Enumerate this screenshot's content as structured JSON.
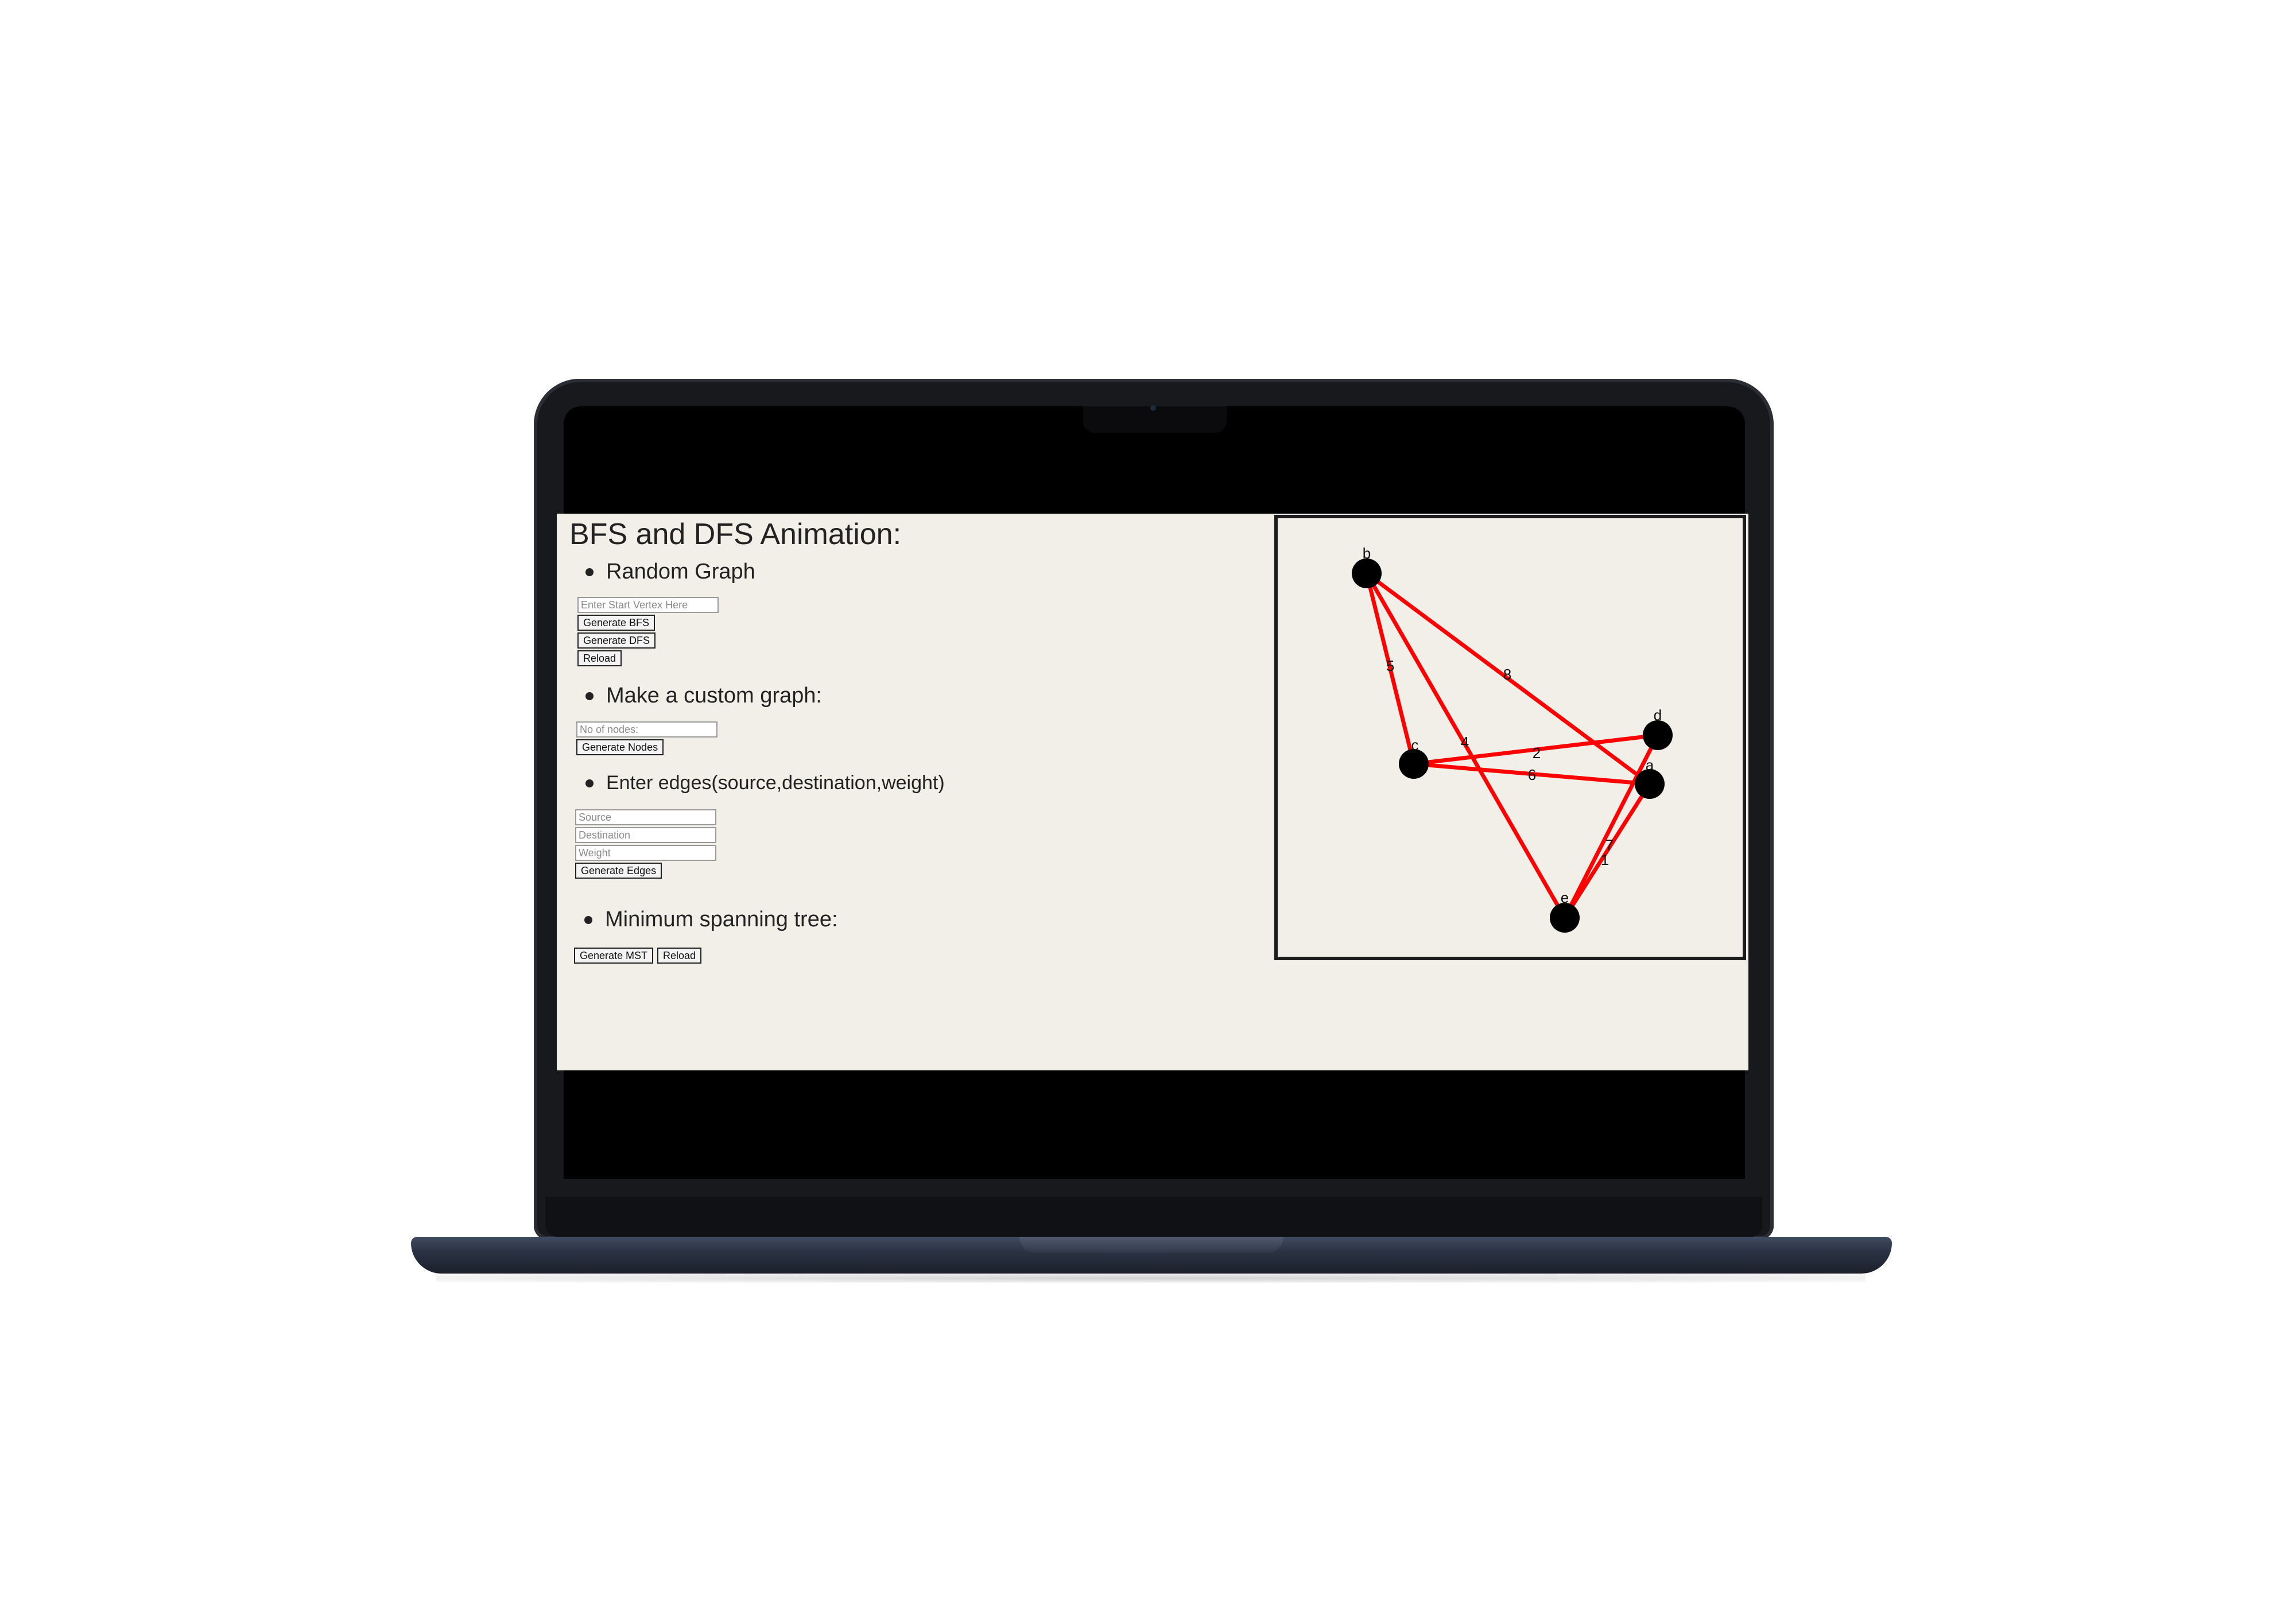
{
  "page": {
    "title": "BFS and DFS Animation:"
  },
  "random_graph": {
    "heading": "Random Graph",
    "start_vertex_placeholder": "Enter Start Vertex Here",
    "bfs_button": "Generate BFS",
    "dfs_button": "Generate DFS",
    "reload_button": "Reload"
  },
  "custom_graph": {
    "heading": "Make a custom graph:",
    "nodes_placeholder": "No of nodes:",
    "generate_nodes_button": "Generate Nodes"
  },
  "edges": {
    "heading": "Enter edges(source,destination,weight)",
    "source_placeholder": "Source",
    "destination_placeholder": "Destination",
    "weight_placeholder": "Weight",
    "generate_edges_button": "Generate Edges"
  },
  "mst": {
    "heading": "Minimum spanning tree:",
    "generate_mst_button": "Generate MST",
    "reload_button": "Reload"
  },
  "graph": {
    "node_color": "#000000",
    "edge_color": "#ff0000",
    "nodes": [
      {
        "id": "b",
        "label": "b"
      },
      {
        "id": "c",
        "label": "c"
      },
      {
        "id": "d",
        "label": "d"
      },
      {
        "id": "a",
        "label": "a"
      },
      {
        "id": "e",
        "label": "e"
      }
    ],
    "edges": [
      {
        "source": "b",
        "target": "c",
        "weight": "5"
      },
      {
        "source": "b",
        "target": "a",
        "weight": "8"
      },
      {
        "source": "b",
        "target": "e",
        "weight": "4"
      },
      {
        "source": "c",
        "target": "d",
        "weight": "2"
      },
      {
        "source": "c",
        "target": "a",
        "weight": "6"
      },
      {
        "source": "d",
        "target": "e",
        "weight": "7"
      },
      {
        "source": "a",
        "target": "e",
        "weight": "1"
      }
    ]
  }
}
